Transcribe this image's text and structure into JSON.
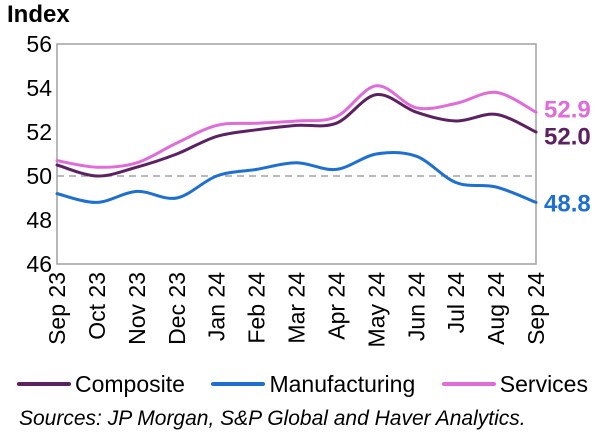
{
  "source_note": "Sources: JP Morgan, S&P Global and Haver Analytics.",
  "colors": {
    "composite": "#5C2161",
    "manufacturing": "#1D6FD2",
    "services": "#E06CDA",
    "axis": "#A6A6A6",
    "reference_line": "#A3A3A3",
    "text": "#000000"
  },
  "chart_data": {
    "type": "line",
    "title": "Index",
    "categories": [
      "Sep 23",
      "Oct 23",
      "Nov 23",
      "Dec 23",
      "Jan 24",
      "Feb 24",
      "Mar 24",
      "Apr 24",
      "May 24",
      "Jun 24",
      "Jul 24",
      "Aug 24",
      "Sep 24"
    ],
    "ylim": [
      46,
      56
    ],
    "yticks": [
      56,
      54,
      52,
      50,
      48,
      46
    ],
    "reference_line": 50,
    "grid": false,
    "smoothed": true,
    "legend_position": "bottom",
    "series": [
      {
        "name": "Composite",
        "color_key": "composite",
        "values": [
          50.5,
          50.0,
          50.4,
          51.0,
          51.8,
          52.1,
          52.3,
          52.4,
          53.7,
          52.9,
          52.5,
          52.8,
          52.0
        ],
        "end_label": "52.0"
      },
      {
        "name": "Manufacturing",
        "color_key": "manufacturing",
        "values": [
          49.2,
          48.8,
          49.3,
          49.0,
          50.0,
          50.3,
          50.6,
          50.3,
          51.0,
          50.9,
          49.7,
          49.5,
          48.8
        ],
        "end_label": "48.8"
      },
      {
        "name": "Services",
        "color_key": "services",
        "values": [
          50.7,
          50.4,
          50.6,
          51.5,
          52.3,
          52.4,
          52.5,
          52.7,
          54.1,
          53.1,
          53.3,
          53.8,
          52.9
        ],
        "end_label": "52.9"
      }
    ]
  }
}
